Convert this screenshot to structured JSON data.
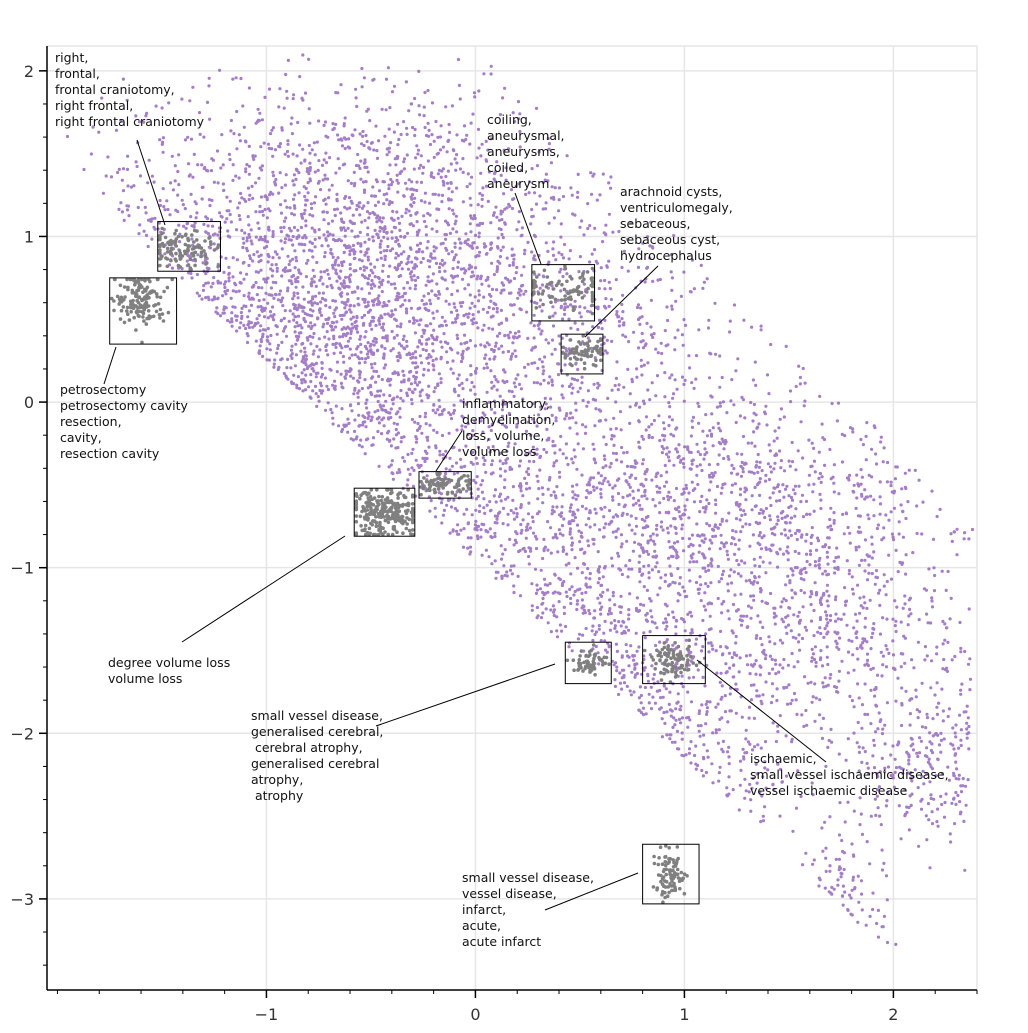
{
  "chart_data": {
    "type": "scatter",
    "title": "",
    "xlabel": "",
    "ylabel": "",
    "xlim": [
      -2.05,
      2.4
    ],
    "ylim": [
      -3.55,
      2.15
    ],
    "x_ticks": [
      -1,
      0,
      1,
      2
    ],
    "x_tick_labels": [
      "−1",
      "0",
      "1",
      "2"
    ],
    "y_ticks": [
      2,
      1,
      0,
      -1,
      -2,
      -3
    ],
    "y_tick_labels": [
      "2",
      "1",
      "0",
      "−1",
      "−2",
      "−3"
    ],
    "grid": true,
    "colors": {
      "points": "#9467bd",
      "highlight": "#808080",
      "grid": "#e6e6e6",
      "axis": "#000000"
    },
    "series": [
      {
        "role": "embedding points",
        "color": "#9467bd",
        "density_regions": [
          {
            "cx": -0.85,
            "cy": 0.25,
            "sx": 0.55,
            "sy": 0.55,
            "weight": 0.28
          },
          {
            "cx": -0.6,
            "cy": 1.2,
            "sx": 0.55,
            "sy": 0.4,
            "weight": 0.12
          },
          {
            "cx": 0.25,
            "cy": 0.55,
            "sx": 0.5,
            "sy": 0.45,
            "weight": 0.08
          },
          {
            "cx": 1.2,
            "cy": -0.5,
            "sx": 0.55,
            "sy": 0.45,
            "weight": 0.1
          },
          {
            "cx": 1.7,
            "cy": -1.3,
            "sx": 0.4,
            "sy": 0.45,
            "weight": 0.08
          },
          {
            "cx": 0.4,
            "cy": -0.8,
            "sx": 0.45,
            "sy": 0.4,
            "weight": 0.08
          },
          {
            "cx": 0.6,
            "cy": -1.7,
            "sx": 0.45,
            "sy": 0.35,
            "weight": 0.09
          },
          {
            "cx": 0.9,
            "cy": -2.5,
            "sx": 0.3,
            "sy": 0.35,
            "weight": 0.06
          },
          {
            "cx": -0.6,
            "cy": -0.9,
            "sx": 0.4,
            "sy": 0.35,
            "weight": 0.06
          },
          {
            "cx": 1.75,
            "cy": -3.1,
            "sx": 0.1,
            "sy": 0.25,
            "weight": 0.02
          },
          {
            "cx": 2.2,
            "cy": -2.2,
            "sx": 0.2,
            "sy": 0.25,
            "weight": 0.03
          }
        ]
      }
    ],
    "clusters": [
      {
        "label": "right frontal craniotomy",
        "center": [
          -1.4,
          0.93
        ],
        "spread": [
          0.1,
          0.06
        ],
        "box": [
          -1.52,
          0.79,
          -1.22,
          1.09
        ],
        "points": 110
      },
      {
        "label": "petrosectomy cavity",
        "center": [
          -1.6,
          0.62
        ],
        "spread": [
          0.06,
          0.08
        ],
        "box": [
          -1.75,
          0.35,
          -1.43,
          0.75
        ],
        "points": 150
      },
      {
        "label": "aneurysm",
        "center": [
          0.45,
          0.68
        ],
        "spread": [
          0.12,
          0.06
        ],
        "box": [
          0.27,
          0.49,
          0.57,
          0.83
        ],
        "points": 90
      },
      {
        "label": "hydrocephalus",
        "center": [
          0.52,
          0.3
        ],
        "spread": [
          0.06,
          0.04
        ],
        "box": [
          0.41,
          0.17,
          0.61,
          0.41
        ],
        "points": 70
      },
      {
        "label": "volume loss",
        "center": [
          -0.15,
          -0.5
        ],
        "spread": [
          0.07,
          0.03
        ],
        "box": [
          -0.27,
          -0.58,
          -0.02,
          -0.42
        ],
        "points": 80
      },
      {
        "label": "degree volume loss",
        "center": [
          -0.43,
          -0.67
        ],
        "spread": [
          0.09,
          0.07
        ],
        "box": [
          -0.58,
          -0.81,
          -0.29,
          -0.52
        ],
        "points": 260
      },
      {
        "label": "generalised cerebral atrophy",
        "center": [
          0.55,
          -1.57
        ],
        "spread": [
          0.04,
          0.04
        ],
        "box": [
          0.43,
          -1.7,
          0.65,
          -1.45
        ],
        "points": 60
      },
      {
        "label": "small vessel ischaemic disease",
        "center": [
          0.95,
          -1.56
        ],
        "spread": [
          0.05,
          0.05
        ],
        "box": [
          0.8,
          -1.7,
          1.1,
          -1.41
        ],
        "points": 90
      },
      {
        "label": "acute infarct",
        "center": [
          0.93,
          -2.86
        ],
        "spread": [
          0.04,
          0.07
        ],
        "box": [
          0.8,
          -3.03,
          1.07,
          -2.67
        ],
        "points": 90
      }
    ]
  },
  "annotations": [
    {
      "id": "craniotomy",
      "lines": [
        "right,",
        "frontal,",
        "frontal craniotomy,",
        "right frontal,",
        "right frontal craniotomy"
      ]
    },
    {
      "id": "petrosectomy",
      "lines": [
        "petrosectomy",
        "petrosectomy cavity",
        "resection,",
        "cavity,",
        "resection cavity"
      ]
    },
    {
      "id": "aneurysm",
      "lines": [
        "coiling,",
        "aneurysmal,",
        "aneurysms,",
        "coiled,",
        "aneurysm"
      ]
    },
    {
      "id": "hydrocephalus",
      "lines": [
        "arachnoid cysts,",
        "ventriculomegaly,",
        "sebaceous,",
        "sebaceous cyst,",
        "hydrocephalus"
      ]
    },
    {
      "id": "volume_loss",
      "lines": [
        "inflammatory,",
        "demyelination,",
        "loss, volume,",
        "volume loss"
      ]
    },
    {
      "id": "degree_volume_loss",
      "lines": [
        "degree volume loss",
        "volume loss"
      ]
    },
    {
      "id": "atrophy",
      "lines": [
        "small vessel disease,",
        "generalised cerebral,",
        " cerebral atrophy,",
        "generalised cerebral",
        "atrophy,",
        " atrophy"
      ]
    },
    {
      "id": "ischaemic",
      "lines": [
        "ischaemic,",
        "small vessel ischaemic disease,",
        "vessel ischaemic disease"
      ]
    },
    {
      "id": "infarct",
      "lines": [
        "small vessel disease,",
        "vessel disease,",
        "infarct,",
        "acute,",
        "acute infarct"
      ]
    }
  ]
}
